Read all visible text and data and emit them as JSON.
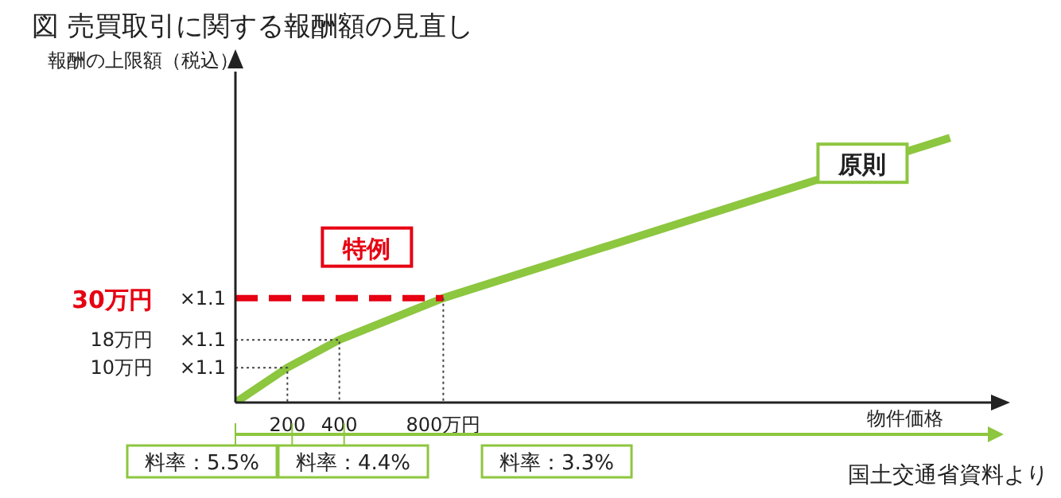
{
  "chart_data": {
    "type": "line",
    "title": "図 売買取引に関する報酬額の見直し",
    "xlabel": "物件価格",
    "ylabel": "報酬の上限額（税込）",
    "series": [
      {
        "name": "原則",
        "color": "#8dc63f",
        "x": [
          0,
          200,
          400,
          800,
          2750
        ],
        "values": [
          0,
          10,
          18,
          30,
          76
        ]
      },
      {
        "name": "特例",
        "color": "#e60012",
        "type": "line",
        "line_style": "dashed",
        "x": [
          0,
          800
        ],
        "values": [
          30,
          30
        ]
      },
      {
        "color": "#444444",
        "type": "line",
        "line_style": "dotted",
        "x": [
          0,
          200,
          200
        ],
        "values": [
          10,
          10,
          0
        ]
      },
      {
        "color": "#444444",
        "type": "line",
        "line_style": "dotted",
        "x": [
          0,
          400,
          400
        ],
        "values": [
          18,
          18,
          0
        ]
      },
      {
        "color": "#444444",
        "type": "line",
        "line_style": "dotted",
        "x": [
          800,
          800
        ],
        "values": [
          30,
          0
        ]
      }
    ],
    "xlim": [
      0,
      2920
    ],
    "xticks": [
      200,
      400,
      {
        "value": 800,
        "label": "800万円"
      }
    ],
    "ylim": [
      0,
      95
    ],
    "yticks": [
      {
        "value": 10,
        "label": "10万円"
      },
      {
        "value": 18,
        "label": "18万円"
      },
      {
        "value": 30,
        "label": "30万円"
      }
    ],
    "annotations": [
      "料率：5.5%",
      "料率：4.4%",
      "料率：3.3%",
      "国土交通省資料より",
      "×1.1",
      "×1.1",
      "×1.1"
    ],
    "grid": false,
    "legend": false,
    "marker": "none",
    "line_style": "solid"
  }
}
